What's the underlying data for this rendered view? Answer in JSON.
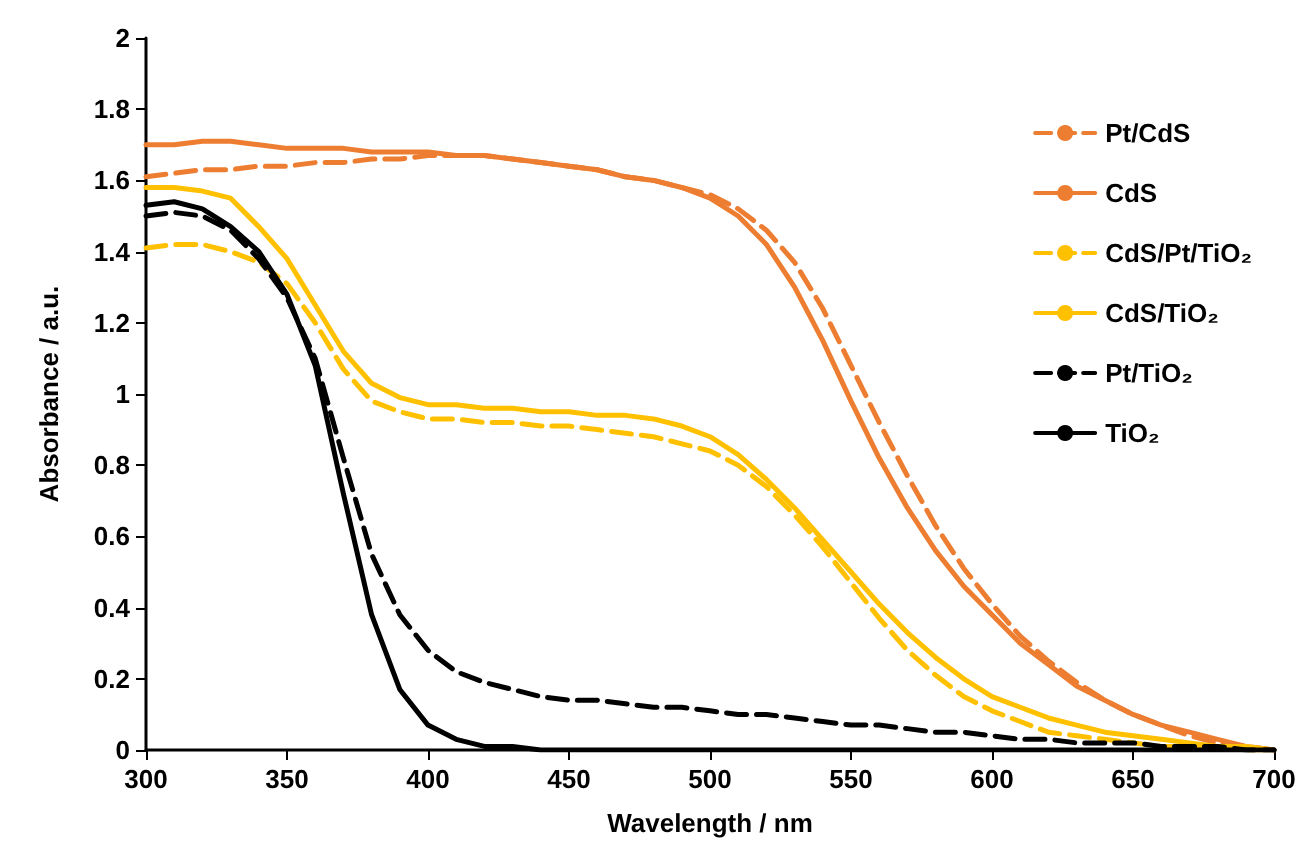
{
  "chart_data": {
    "type": "line",
    "xlabel": "Wavelength / nm",
    "ylabel": "Absorbance / a.u.",
    "x": [
      300,
      310,
      320,
      330,
      340,
      350,
      360,
      370,
      380,
      390,
      400,
      410,
      420,
      430,
      440,
      450,
      460,
      470,
      480,
      490,
      500,
      510,
      520,
      530,
      540,
      550,
      560,
      570,
      580,
      590,
      600,
      610,
      620,
      630,
      640,
      650,
      660,
      670,
      680,
      690,
      700
    ],
    "xlim": [
      300,
      700
    ],
    "xticks": [
      300,
      350,
      400,
      450,
      500,
      550,
      600,
      650,
      700
    ],
    "ylim": [
      0,
      2
    ],
    "yticks": [
      0,
      {
        "value": 0.2,
        "label": "0.2"
      },
      {
        "value": 0.4,
        "label": "0.4"
      },
      {
        "value": 0.6,
        "label": "0.6"
      },
      {
        "value": 0.8,
        "label": "0.8"
      },
      1,
      {
        "value": 1.2,
        "label": "1.2"
      },
      {
        "value": 1.4,
        "label": "1.4"
      },
      {
        "value": 1.6,
        "label": "1.6"
      },
      {
        "value": 1.8,
        "label": "1.8"
      },
      2
    ],
    "grid": false,
    "legend": "top right",
    "marker": "none",
    "series": [
      {
        "name": "Pt/CdS",
        "color": "#ed7d31",
        "line_style": "dashed",
        "values": [
          1.61,
          1.62,
          1.63,
          1.63,
          1.64,
          1.64,
          1.65,
          1.65,
          1.66,
          1.66,
          1.67,
          1.67,
          1.67,
          1.66,
          1.65,
          1.64,
          1.63,
          1.61,
          1.6,
          1.58,
          1.56,
          1.52,
          1.46,
          1.37,
          1.24,
          1.08,
          0.92,
          0.77,
          0.63,
          0.51,
          0.41,
          0.32,
          0.25,
          0.19,
          0.14,
          0.1,
          0.07,
          0.04,
          0.02,
          0.01,
          0
        ]
      },
      {
        "name": "CdS",
        "color": "#ed7d31",
        "line_style": "solid",
        "values": [
          1.7,
          1.7,
          1.71,
          1.71,
          1.7,
          1.69,
          1.69,
          1.69,
          1.68,
          1.68,
          1.68,
          1.67,
          1.67,
          1.66,
          1.65,
          1.64,
          1.63,
          1.61,
          1.6,
          1.58,
          1.55,
          1.5,
          1.42,
          1.3,
          1.15,
          0.98,
          0.82,
          0.68,
          0.56,
          0.46,
          0.38,
          0.3,
          0.24,
          0.18,
          0.14,
          0.1,
          0.07,
          0.05,
          0.03,
          0.01,
          0
        ]
      },
      {
        "name": "CdS/Pt/TiO₂",
        "color": "#ffc000",
        "line_style": "dashed",
        "values": [
          1.41,
          1.42,
          1.42,
          1.4,
          1.37,
          1.31,
          1.2,
          1.07,
          0.98,
          0.95,
          0.93,
          0.93,
          0.92,
          0.92,
          0.91,
          0.91,
          0.9,
          0.89,
          0.88,
          0.86,
          0.84,
          0.8,
          0.74,
          0.66,
          0.57,
          0.47,
          0.37,
          0.28,
          0.21,
          0.15,
          0.11,
          0.08,
          0.05,
          0.04,
          0.03,
          0.02,
          0.01,
          0.01,
          0.01,
          0,
          0
        ]
      },
      {
        "name": "CdS/TiO₂",
        "color": "#ffc000",
        "line_style": "solid",
        "values": [
          1.58,
          1.58,
          1.57,
          1.55,
          1.47,
          1.38,
          1.25,
          1.12,
          1.03,
          0.99,
          0.97,
          0.97,
          0.96,
          0.96,
          0.95,
          0.95,
          0.94,
          0.94,
          0.93,
          0.91,
          0.88,
          0.83,
          0.76,
          0.68,
          0.59,
          0.5,
          0.41,
          0.33,
          0.26,
          0.2,
          0.15,
          0.12,
          0.09,
          0.07,
          0.05,
          0.04,
          0.03,
          0.02,
          0.01,
          0.01,
          0
        ]
      },
      {
        "name": "Pt/TiO₂",
        "color": "#000000",
        "line_style": "dashed",
        "values": [
          1.5,
          1.51,
          1.5,
          1.46,
          1.38,
          1.27,
          1.1,
          0.82,
          0.55,
          0.38,
          0.28,
          0.22,
          0.19,
          0.17,
          0.15,
          0.14,
          0.14,
          0.13,
          0.12,
          0.12,
          0.11,
          0.1,
          0.1,
          0.09,
          0.08,
          0.07,
          0.07,
          0.06,
          0.05,
          0.05,
          0.04,
          0.03,
          0.03,
          0.02,
          0.02,
          0.02,
          0.01,
          0.01,
          0.01,
          0,
          0
        ]
      },
      {
        "name": "TiO₂",
        "color": "#000000",
        "line_style": "solid",
        "values": [
          1.53,
          1.54,
          1.52,
          1.47,
          1.4,
          1.28,
          1.08,
          0.72,
          0.38,
          0.17,
          0.07,
          0.03,
          0.01,
          0.01,
          0,
          0,
          0,
          0,
          0,
          0,
          0,
          0,
          0,
          0,
          0,
          0,
          0,
          0,
          0,
          0,
          0,
          0,
          0,
          0,
          0,
          0,
          0,
          0,
          0,
          0,
          0
        ]
      }
    ]
  }
}
